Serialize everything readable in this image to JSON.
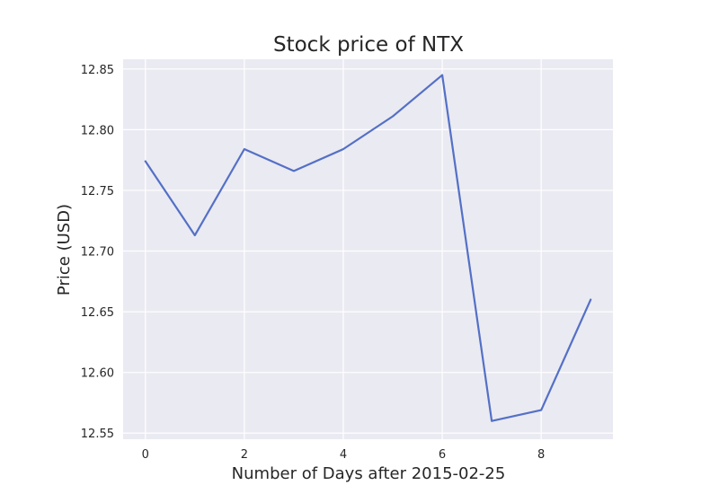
{
  "chart_data": {
    "type": "line",
    "title": "Stock price of NTX",
    "xlabel": "Number of Days after 2015-02-25",
    "ylabel": "Price (USD)",
    "x": [
      0,
      1,
      2,
      3,
      4,
      5,
      6,
      7,
      8,
      9
    ],
    "series": [
      {
        "values": [
          12.774,
          12.713,
          12.784,
          12.766,
          12.784,
          12.811,
          12.845,
          12.56,
          12.569,
          12.66
        ],
        "color": "#5470c6"
      }
    ],
    "xticks": [
      "0",
      "2",
      "4",
      "6",
      "8"
    ],
    "xtick_values": [
      0,
      2,
      4,
      6,
      8
    ],
    "yticks": [
      "12.55",
      "12.60",
      "12.65",
      "12.70",
      "12.75",
      "12.80",
      "12.85"
    ],
    "ytick_values": [
      12.55,
      12.6,
      12.65,
      12.7,
      12.75,
      12.8,
      12.85
    ],
    "xlim": [
      -0.45,
      9.45
    ],
    "ylim": [
      12.545,
      12.858
    ],
    "grid": true,
    "background": "#eaeaf2"
  }
}
